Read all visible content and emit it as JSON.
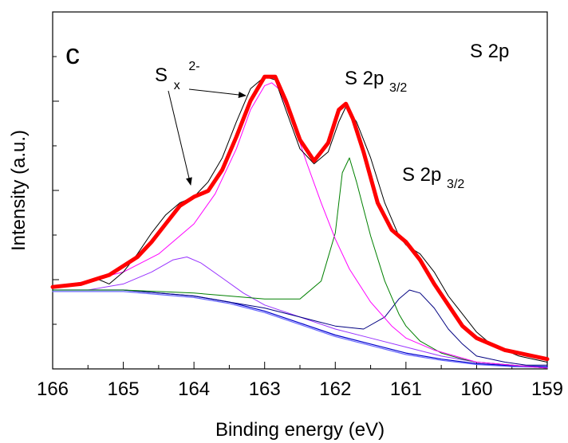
{
  "chart_data": {
    "type": "line",
    "panel_label": "c",
    "corner_label": "S 2p",
    "xlabel": "Binding energy (eV)",
    "ylabel": "Intensity (a.u.)",
    "xlim": [
      166,
      159
    ],
    "x_reversed": true,
    "ylim": [
      0,
      100
    ],
    "x_ticks": [
      "166",
      "165",
      "164",
      "163",
      "162",
      "161",
      "160",
      "159"
    ],
    "y_ticks_labeled": false,
    "grid": false,
    "annotations": [
      {
        "id": "sx",
        "base": "S",
        "sub": "x",
        "sup": "2-"
      },
      {
        "id": "p32a",
        "base": "S 2p",
        "sub": "3/2"
      },
      {
        "id": "p32b",
        "base": "S 2p",
        "sub": "3/2"
      }
    ],
    "series": [
      {
        "id": "raw",
        "color": "#000000",
        "x": [
          166.0,
          165.6,
          165.4,
          165.2,
          165.0,
          164.8,
          164.6,
          164.4,
          164.2,
          164.0,
          163.8,
          163.6,
          163.4,
          163.2,
          163.0,
          162.85,
          162.7,
          162.5,
          162.3,
          162.1,
          161.95,
          161.85,
          161.7,
          161.5,
          161.3,
          161.1,
          161.0,
          160.8,
          160.6,
          160.4,
          160.2,
          160.0,
          159.8,
          159.6,
          159.4,
          159.2,
          159.0
        ],
        "values": [
          27,
          28,
          30,
          28,
          32,
          38,
          45,
          51,
          55,
          57,
          62,
          70,
          82,
          93,
          97,
          96,
          86,
          73,
          68,
          72,
          82,
          87,
          82,
          70,
          55,
          44,
          41,
          38,
          32,
          24,
          18,
          12,
          8,
          6,
          4,
          3,
          2
        ]
      },
      {
        "id": "envelope",
        "color": "#ff0000",
        "x": [
          166.0,
          165.6,
          165.2,
          164.8,
          164.6,
          164.4,
          164.2,
          164.0,
          163.8,
          163.6,
          163.4,
          163.2,
          163.0,
          162.85,
          162.7,
          162.5,
          162.3,
          162.1,
          161.95,
          161.85,
          161.75,
          161.6,
          161.4,
          161.2,
          161.0,
          160.8,
          160.6,
          160.4,
          160.2,
          160.0,
          159.6,
          159.2,
          159.0
        ],
        "values": [
          27,
          28,
          31,
          37,
          42,
          48,
          54,
          57,
          59,
          66,
          77,
          89,
          97,
          97,
          89,
          76,
          69,
          75,
          86,
          88,
          83,
          72,
          55,
          46,
          42,
          36,
          28,
          21,
          14,
          10,
          6,
          4,
          3
        ]
      },
      {
        "id": "sx_main",
        "color": "#ff00ff",
        "x": [
          166.0,
          165.5,
          165.0,
          164.5,
          164.0,
          163.7,
          163.4,
          163.2,
          163.0,
          162.9,
          162.8,
          162.6,
          162.4,
          162.2,
          162.0,
          161.8,
          161.5,
          161.2,
          161.0,
          160.6,
          160.0,
          159.5,
          159.0
        ],
        "values": [
          27,
          29,
          32,
          38,
          48,
          58,
          73,
          86,
          94,
          95,
          93,
          82,
          68,
          55,
          43,
          33,
          22,
          14,
          10,
          6,
          2,
          1,
          0
        ]
      },
      {
        "id": "sx_shoulder",
        "color": "#9933ff",
        "x": [
          166.0,
          165.5,
          165.0,
          164.6,
          164.3,
          164.1,
          163.9,
          163.6,
          163.3,
          163.0,
          162.5,
          162.0,
          161.5,
          161.0,
          160.5,
          160.0,
          159.0
        ],
        "values": [
          26,
          26,
          28,
          32,
          36,
          37,
          35,
          30,
          25,
          21,
          17,
          13,
          10,
          7,
          4,
          2,
          0
        ]
      },
      {
        "id": "p32_main",
        "color": "#008000",
        "x": [
          166.0,
          165.0,
          164.0,
          163.5,
          163.0,
          162.5,
          162.2,
          162.0,
          161.9,
          161.8,
          161.7,
          161.5,
          161.3,
          161.1,
          161.0,
          160.8,
          160.5,
          160.2,
          160.0,
          159.5,
          159.0
        ],
        "values": [
          26,
          26,
          25,
          24,
          23,
          23,
          29,
          45,
          65,
          70,
          62,
          44,
          29,
          18,
          14,
          9,
          5,
          3,
          2,
          1,
          0
        ]
      },
      {
        "id": "p32_minor",
        "color": "#000080",
        "x": [
          166.0,
          165.0,
          164.0,
          163.5,
          163.0,
          162.5,
          162.0,
          161.6,
          161.3,
          161.1,
          160.95,
          160.8,
          160.6,
          160.4,
          160.2,
          160.0,
          159.6,
          159.3,
          159.0
        ],
        "values": [
          26,
          26,
          24,
          22,
          20,
          17,
          14,
          13,
          17,
          23,
          26,
          25,
          20,
          13,
          8,
          4,
          2,
          1,
          1
        ]
      },
      {
        "id": "background_1",
        "color": "#0000cc",
        "x": [
          166.0,
          165.0,
          164.5,
          164.0,
          163.5,
          163.0,
          162.5,
          162.0,
          161.5,
          161.0,
          160.5,
          160.0,
          159.5,
          159.0
        ],
        "values": [
          26,
          26,
          25,
          24,
          22,
          19,
          15,
          11,
          8,
          5,
          3,
          1.5,
          0.8,
          0.5
        ]
      },
      {
        "id": "background_2",
        "color": "#6666ff",
        "x": [
          166.0,
          165.0,
          164.5,
          164.0,
          163.5,
          163.0,
          162.5,
          162.0,
          161.5,
          161.0,
          160.5,
          160.0,
          159.5,
          159.0
        ],
        "values": [
          25.5,
          25.5,
          24.5,
          23.5,
          21.5,
          18.5,
          14.5,
          10.5,
          7.5,
          4.5,
          2.6,
          1.2,
          0.5,
          0.2
        ]
      }
    ]
  }
}
